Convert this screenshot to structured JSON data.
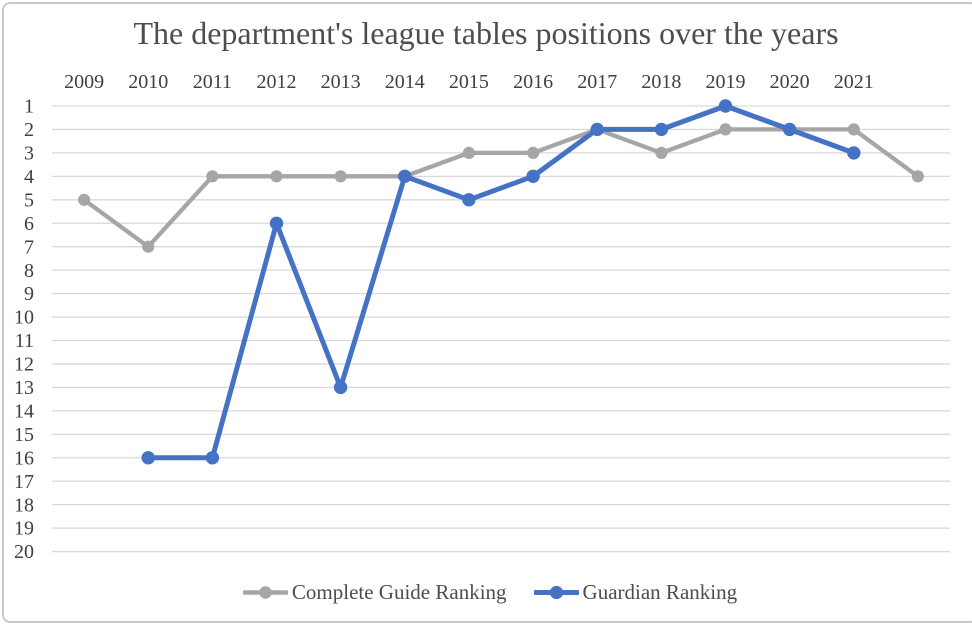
{
  "window": {
    "background": "#ffffff",
    "border_color": "#c9c9c9"
  },
  "chart_data": {
    "type": "line",
    "title": "The department's league tables positions over the years",
    "xlabel": "",
    "ylabel": "",
    "categories": [
      "2009",
      "2010",
      "2011",
      "2012",
      "2013",
      "2014",
      "2015",
      "2016",
      "2017",
      "2018",
      "2019",
      "2020",
      "2021",
      ""
    ],
    "y_ticks": [
      1,
      2,
      3,
      4,
      5,
      6,
      7,
      8,
      9,
      10,
      11,
      12,
      13,
      14,
      15,
      16,
      17,
      18,
      19,
      20
    ],
    "y_axis": {
      "min": 1,
      "max": 20,
      "inverted": true,
      "meaning": "league table position (1 = top)"
    },
    "x_axis_labels_position": "top",
    "grid": "horizontal",
    "legend_position": "bottom",
    "series": [
      {
        "name": "Complete Guide Ranking",
        "color": "#a6a6a6",
        "marker": "circle",
        "values": [
          5,
          7,
          4,
          4,
          4,
          4,
          3,
          3,
          2,
          3,
          2,
          2,
          2,
          4
        ]
      },
      {
        "name": "Guardian Ranking",
        "color": "#4472c4",
        "marker": "circle",
        "values": [
          null,
          16,
          16,
          6,
          13,
          4,
          5,
          4,
          2,
          2,
          1,
          2,
          3,
          null
        ]
      }
    ],
    "colors": {
      "gridline": "#d9d9d9",
      "title_text": "#4d4d4d",
      "tick_text": "#404040",
      "legend_text": "#4d4d4d"
    }
  }
}
